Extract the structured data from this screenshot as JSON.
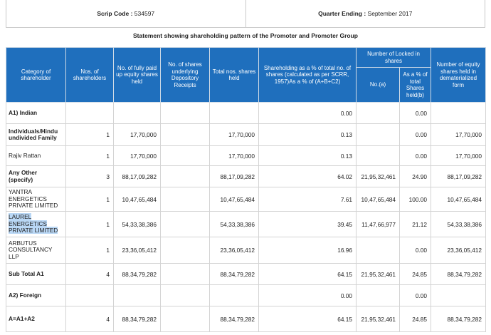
{
  "header": {
    "scrip_label": "Scrip Code :",
    "scrip_code": "534597",
    "quarter_label": "Quarter Ending :",
    "quarter": "September 2017"
  },
  "statement_title": "Statement showing shareholding pattern of the Promoter and Promoter Group",
  "columns": {
    "category": "Category of shareholder",
    "nos_shareholders": "Nos. of shareholders",
    "fully_paid": "No. of fully paid up equity shares held",
    "underlying_dr": "No. of shares underlying Depository Receipts",
    "total_shares": "Total nos. shares held",
    "shareholding_pct": "Shareholding as a % of total no. of shares (calculated as per SCRR, 1957)As a % of (A+B+C2)",
    "locked_group": "Number of Locked in shares",
    "locked_no": "No.(a)",
    "locked_pct": "As a % of total Shares held(b)",
    "demat": "Number of equity shares held in dematerialized form"
  },
  "rows": [
    {
      "category": "A1) Indian",
      "holders": "",
      "paid": "",
      "dr": "",
      "total": "",
      "pct": "0.00",
      "locked_no": "",
      "locked_pct": "0.00",
      "demat": "",
      "bold": true
    },
    {
      "category": "Individuals/Hindu undivided Family",
      "holders": "1",
      "paid": "17,70,000",
      "dr": "",
      "total": "17,70,000",
      "pct": "0.13",
      "locked_no": "",
      "locked_pct": "0.00",
      "demat": "17,70,000",
      "bold": true
    },
    {
      "category": "Rajiv Rattan",
      "holders": "1",
      "paid": "17,70,000",
      "dr": "",
      "total": "17,70,000",
      "pct": "0.13",
      "locked_no": "",
      "locked_pct": "0.00",
      "demat": "17,70,000",
      "bold": false
    },
    {
      "category": "Any Other (specify)",
      "holders": "3",
      "paid": "88,17,09,282",
      "dr": "",
      "total": "88,17,09,282",
      "pct": "64.02",
      "locked_no": "21,95,32,461",
      "locked_pct": "24.90",
      "demat": "88,17,09,282",
      "bold": true
    },
    {
      "category": "YANTRA ENERGETICS PRIVATE LIMITED",
      "holders": "1",
      "paid": "10,47,65,484",
      "dr": "",
      "total": "10,47,65,484",
      "pct": "7.61",
      "locked_no": "10,47,65,484",
      "locked_pct": "100.00",
      "demat": "10,47,65,484",
      "bold": false
    },
    {
      "category": "LAUREL ENERGETICS PRIVATE LIMITED",
      "holders": "1",
      "paid": "54,33,38,386",
      "dr": "",
      "total": "54,33,38,386",
      "pct": "39.45",
      "locked_no": "11,47,66,977",
      "locked_pct": "21.12",
      "demat": "54,33,38,386",
      "bold": false,
      "highlight": true
    },
    {
      "category": "ARBUTUS CONSULTANCY LLP",
      "holders": "1",
      "paid": "23,36,05,412",
      "dr": "",
      "total": "23,36,05,412",
      "pct": "16.96",
      "locked_no": "",
      "locked_pct": "0.00",
      "demat": "23,36,05,412",
      "bold": false
    },
    {
      "category": "Sub Total A1",
      "holders": "4",
      "paid": "88,34,79,282",
      "dr": "",
      "total": "88,34,79,282",
      "pct": "64.15",
      "locked_no": "21,95,32,461",
      "locked_pct": "24.85",
      "demat": "88,34,79,282",
      "bold": true
    },
    {
      "category": "A2) Foreign",
      "holders": "",
      "paid": "",
      "dr": "",
      "total": "",
      "pct": "0.00",
      "locked_no": "",
      "locked_pct": "0.00",
      "demat": "",
      "bold": true
    },
    {
      "category": "A=A1+A2",
      "holders": "4",
      "paid": "88,34,79,282",
      "dr": "",
      "total": "88,34,79,282",
      "pct": "64.15",
      "locked_no": "21,95,32,461",
      "locked_pct": "24.85",
      "demat": "88,34,79,282",
      "bold": true
    }
  ]
}
